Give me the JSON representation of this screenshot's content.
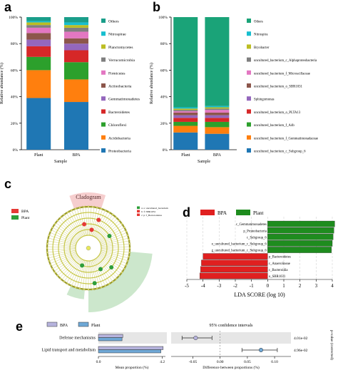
{
  "panel_letters": [
    "a",
    "b",
    "c",
    "d",
    "e"
  ],
  "chart_data": [
    {
      "type": "bar",
      "stacked": true,
      "panel": "a",
      "categories": [
        "Plant",
        "BPA"
      ],
      "xlabel": "Sample",
      "ylabel": "Relative abundance (%)",
      "ylim": [
        0,
        100
      ],
      "yticks": [
        "0%",
        "20%",
        "40%",
        "60%",
        "80%",
        "100%"
      ],
      "series": [
        {
          "name": "Proteobacteria",
          "color": "#1f77b4",
          "values": [
            39,
            36
          ]
        },
        {
          "name": "Acidobacteria",
          "color": "#ff7f0e",
          "values": [
            21,
            17
          ]
        },
        {
          "name": "Chloroflexi",
          "color": "#2ca02c",
          "values": [
            10,
            13
          ]
        },
        {
          "name": "Bacteroidetes",
          "color": "#d62728",
          "values": [
            8,
            9
          ]
        },
        {
          "name": "Gemmatimonadetes",
          "color": "#9467bd",
          "values": [
            5,
            5
          ]
        },
        {
          "name": "Actinobacteria",
          "color": "#8c564b",
          "values": [
            5,
            4
          ]
        },
        {
          "name": "Firmicutes",
          "color": "#e377c2",
          "values": [
            4,
            5
          ]
        },
        {
          "name": "Verrucomicrobia",
          "color": "#7f7f7f",
          "values": [
            2,
            3
          ]
        },
        {
          "name": "Planctomycetes",
          "color": "#bcbd22",
          "values": [
            2,
            2
          ]
        },
        {
          "name": "Nitrospirae",
          "color": "#17becf",
          "values": [
            1,
            2
          ]
        },
        {
          "name": "Others",
          "color": "#1a9e8a",
          "values": [
            3,
            4
          ]
        }
      ],
      "legend_placement": "right"
    },
    {
      "type": "bar",
      "stacked": true,
      "panel": "b",
      "categories": [
        "Plant",
        "BPA"
      ],
      "xlabel": "Sample",
      "ylabel": "Relative abundance (%)",
      "ylim": [
        0,
        100
      ],
      "yticks": [
        "0%",
        "20%",
        "40%",
        "60%",
        "80%",
        "100%"
      ],
      "series": [
        {
          "name": "uncultured_bacterium_c_Subgroup_6",
          "color": "#1f77b4",
          "values": [
            13,
            12
          ]
        },
        {
          "name": "uncultured_bacterium_f_Gemmatimonadaceae",
          "color": "#ff7f0e",
          "values": [
            5,
            5
          ]
        },
        {
          "name": "uncultured_bacterium_f_A4b",
          "color": "#2ca02c",
          "values": [
            3,
            4
          ]
        },
        {
          "name": "uncultured_bacterium_o_PLTA13",
          "color": "#d62728",
          "values": [
            3,
            3
          ]
        },
        {
          "name": "Sphingomonas",
          "color": "#9467bd",
          "values": [
            2,
            2
          ]
        },
        {
          "name": "uncultured_bacterium_o_SBR1031",
          "color": "#8c564b",
          "values": [
            2,
            2
          ]
        },
        {
          "name": "uncultured_bacterium_f_Microscillaceae",
          "color": "#e377c2",
          "values": [
            1,
            2
          ]
        },
        {
          "name": "uncultured_bacterium_c_Alphaproteobacteria",
          "color": "#7f7f7f",
          "values": [
            1,
            1
          ]
        },
        {
          "name": "Bryobacter",
          "color": "#bcbd22",
          "values": [
            1,
            1
          ]
        },
        {
          "name": "Nitrospira",
          "color": "#17becf",
          "values": [
            1,
            1
          ]
        },
        {
          "name": "Others",
          "color": "#1aa378",
          "values": [
            68,
            67
          ]
        }
      ],
      "legend_placement": "right"
    },
    {
      "type": "cladogram",
      "panel": "c",
      "title": "Cladogram",
      "legend": [
        {
          "name": "BPA",
          "color": "#e53935"
        },
        {
          "name": "Plant",
          "color": "#2e9e3a"
        }
      ],
      "key_lines": [
        {
          "code": "a",
          "label": "o: uncultured_bacterium"
        },
        {
          "code": "b",
          "label": "f: SBR1031"
        }
      ],
      "key_line3": [
        "c",
        "p: f_Bacteroidetes"
      ]
    },
    {
      "type": "bar",
      "orientation": "horizontal",
      "panel": "d",
      "xlabel": "LDA SCORE (log 10)",
      "xlim": [
        -5,
        4
      ],
      "xticks": [
        "-5",
        "-4",
        "-3",
        "-2",
        "-1",
        "0",
        "1",
        "2",
        "3",
        "4"
      ],
      "legend": [
        {
          "name": "BPA",
          "color": "#e02020"
        },
        {
          "name": "Plant",
          "color": "#1e8c1e"
        }
      ],
      "bars": [
        {
          "label": "c_Gemmatimonadetes",
          "value": 4.15,
          "group": "Plant"
        },
        {
          "label": "p_Proteobacteria",
          "value": 4.1,
          "group": "Plant"
        },
        {
          "label": "c_Subgroup_6",
          "value": 4.05,
          "group": "Plant"
        },
        {
          "label": "o_uncultured_bacterium_c_Subgroup_6",
          "value": 4.0,
          "group": "Plant"
        },
        {
          "label": "g_uncultured_bacterium_c_Subgroup_6",
          "value": 3.95,
          "group": "Plant"
        },
        {
          "label": "p_Bacteroidetes",
          "value": -4.0,
          "group": "BPA"
        },
        {
          "label": "c_Anaerolineae",
          "value": -4.1,
          "group": "BPA"
        },
        {
          "label": "c_Bacteroidia",
          "value": -4.15,
          "group": "BPA"
        },
        {
          "label": "o_SBR1031",
          "value": -4.2,
          "group": "BPA"
        }
      ]
    },
    {
      "type": "bar",
      "orientation": "horizontal",
      "panel": "e",
      "legend": [
        {
          "name": "BPA",
          "color": "#b6b3dd"
        },
        {
          "name": "Plant",
          "color": "#6fa8d6"
        }
      ],
      "categories": [
        "Defense mechanisms",
        "Lipid transport and metabolism"
      ],
      "mean_proportion": {
        "xlabel": "Mean proportion (%)",
        "xticks": [
          "0.0",
          "4.2"
        ],
        "xlim": [
          0,
          4.4
        ],
        "BPA": [
          1.6,
          4.25
        ],
        "Plant": [
          1.55,
          4.1
        ]
      },
      "difference": {
        "title": "95% confidence intervals",
        "xlabel": "Difference between proportions (%)",
        "xticks": [
          "-0.05",
          "0.00",
          "0.05",
          "0.10"
        ],
        "xlim": [
          -0.09,
          0.13
        ],
        "estimate": [
          -0.045,
          0.075
        ],
        "ci": [
          [
            -0.07,
            -0.015
          ],
          [
            0.04,
            0.105
          ]
        ]
      },
      "p_values": [
        "4.01e-02",
        "4.96e-02"
      ],
      "p_label": "p-value (corrected)"
    }
  ]
}
